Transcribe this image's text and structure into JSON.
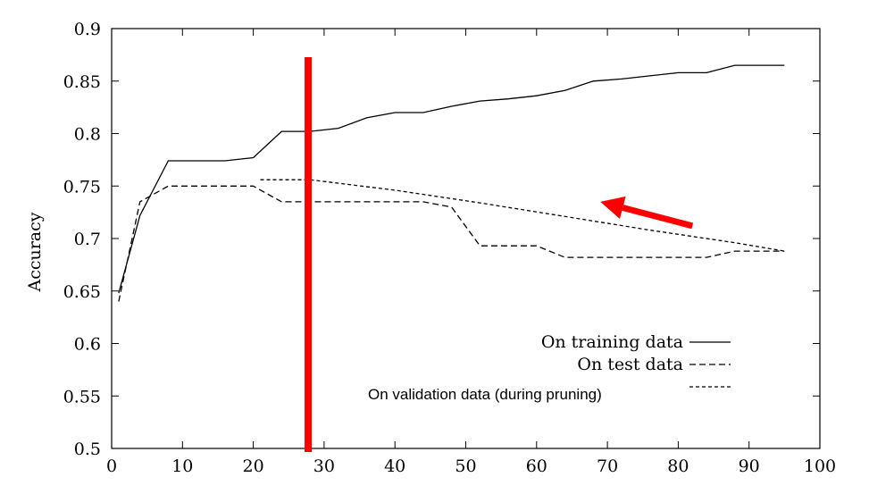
{
  "chart_data": {
    "type": "line",
    "xlabel": "",
    "ylabel": "Accuracy",
    "xlim": [
      0,
      100
    ],
    "ylim": [
      0.5,
      0.9
    ],
    "x_ticks": [
      "0",
      "10",
      "20",
      "30",
      "40",
      "50",
      "60",
      "70",
      "80",
      "90",
      "100"
    ],
    "y_ticks": [
      "0.5",
      "0.55",
      "0.6",
      "0.65",
      "0.7",
      "0.75",
      "0.8",
      "0.85",
      "0.9"
    ],
    "grid": false,
    "legend_position": "bottom-right",
    "series": [
      {
        "name": "On training data",
        "style": "solid",
        "points": [
          [
            1,
            0.648
          ],
          [
            4,
            0.722
          ],
          [
            8,
            0.774
          ],
          [
            16,
            0.774
          ],
          [
            20,
            0.777
          ],
          [
            24,
            0.802
          ],
          [
            28,
            0.802
          ],
          [
            32,
            0.805
          ],
          [
            36,
            0.815
          ],
          [
            40,
            0.82
          ],
          [
            44,
            0.82
          ],
          [
            48,
            0.826
          ],
          [
            52,
            0.831
          ],
          [
            56,
            0.833
          ],
          [
            60,
            0.836
          ],
          [
            64,
            0.841
          ],
          [
            68,
            0.85
          ],
          [
            72,
            0.852
          ],
          [
            76,
            0.855
          ],
          [
            80,
            0.858
          ],
          [
            84,
            0.858
          ],
          [
            88,
            0.865
          ],
          [
            95,
            0.865
          ]
        ]
      },
      {
        "name": "On test data",
        "style": "dashed",
        "points": [
          [
            1,
            0.64
          ],
          [
            4,
            0.735
          ],
          [
            8,
            0.75
          ],
          [
            20,
            0.75
          ],
          [
            24,
            0.735
          ],
          [
            40,
            0.735
          ],
          [
            44,
            0.735
          ],
          [
            48,
            0.73
          ],
          [
            52,
            0.693
          ],
          [
            60,
            0.693
          ],
          [
            64,
            0.682
          ],
          [
            84,
            0.682
          ],
          [
            88,
            0.688
          ],
          [
            95,
            0.688
          ]
        ]
      },
      {
        "name": "On validation data (during pruning)",
        "style": "dotted",
        "points": [
          [
            21,
            0.756
          ],
          [
            28,
            0.756
          ],
          [
            40,
            0.746
          ],
          [
            52,
            0.734
          ],
          [
            64,
            0.721
          ],
          [
            76,
            0.708
          ],
          [
            88,
            0.696
          ],
          [
            95,
            0.688
          ]
        ]
      }
    ],
    "annotations": [
      {
        "type": "vertical-line",
        "x": 28,
        "color": "#ff0000"
      },
      {
        "type": "arrow",
        "from": [
          82,
          0.712
        ],
        "to": [
          69,
          0.735
        ],
        "color": "#ff0000"
      }
    ]
  }
}
